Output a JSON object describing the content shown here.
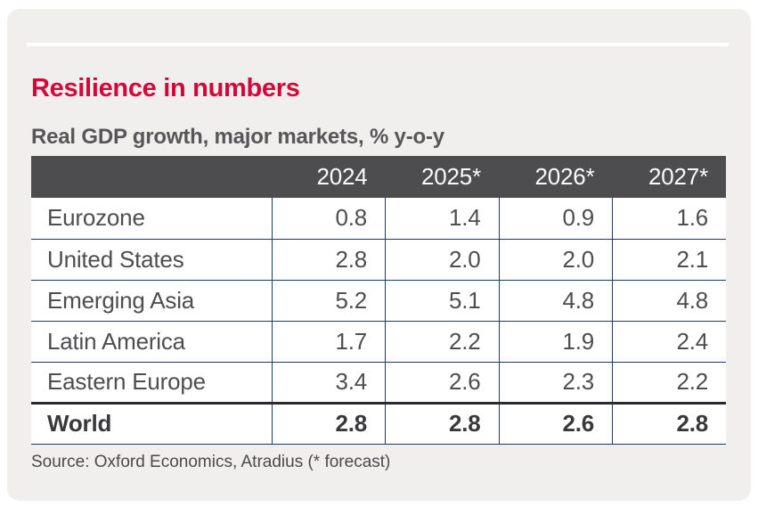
{
  "title": "Resilience in numbers",
  "subtitle": "Real GDP growth, major markets, % y-o-y",
  "source": "Source: Oxford Economics, Atradius (* forecast)",
  "colors": {
    "accent_red": "#d5073a",
    "header_bg": "#4d4d4f",
    "border_navy": "#1f3a68",
    "card_bg": "#f0efed",
    "body_text": "#4e4e51"
  },
  "table": {
    "columns": [
      "",
      "2024",
      "2025*",
      "2026*",
      "2027*"
    ],
    "rows": [
      {
        "name": "Eurozone",
        "values": [
          "0.8",
          "1.4",
          "0.9",
          "1.6"
        ]
      },
      {
        "name": "United States",
        "values": [
          "2.8",
          "2.0",
          "2.0",
          "2.1"
        ]
      },
      {
        "name": "Emerging Asia",
        "values": [
          "5.2",
          "5.1",
          "4.8",
          "4.8"
        ]
      },
      {
        "name": "Latin America",
        "values": [
          "1.7",
          "2.2",
          "1.9",
          "2.4"
        ]
      },
      {
        "name": "Eastern Europe",
        "values": [
          "3.4",
          "2.6",
          "2.3",
          "2.2"
        ]
      },
      {
        "name": "World",
        "values": [
          "2.8",
          "2.8",
          "2.6",
          "2.8"
        ]
      }
    ]
  },
  "chart_data": {
    "type": "table",
    "title": "Resilience in numbers",
    "subtitle": "Real GDP growth, major markets, % y-o-y",
    "categories": [
      "2024",
      "2025*",
      "2026*",
      "2027*"
    ],
    "series": [
      {
        "name": "Eurozone",
        "values": [
          0.8,
          1.4,
          0.9,
          1.6
        ]
      },
      {
        "name": "United States",
        "values": [
          2.8,
          2.0,
          2.0,
          2.1
        ]
      },
      {
        "name": "Emerging Asia",
        "values": [
          5.2,
          5.1,
          4.8,
          4.8
        ]
      },
      {
        "name": "Latin America",
        "values": [
          1.7,
          2.2,
          1.9,
          2.4
        ]
      },
      {
        "name": "Eastern Europe",
        "values": [
          3.4,
          2.6,
          2.3,
          2.2
        ]
      },
      {
        "name": "World",
        "values": [
          2.8,
          2.8,
          2.6,
          2.8
        ]
      }
    ],
    "note": "* forecast",
    "source": "Oxford Economics, Atradius"
  }
}
